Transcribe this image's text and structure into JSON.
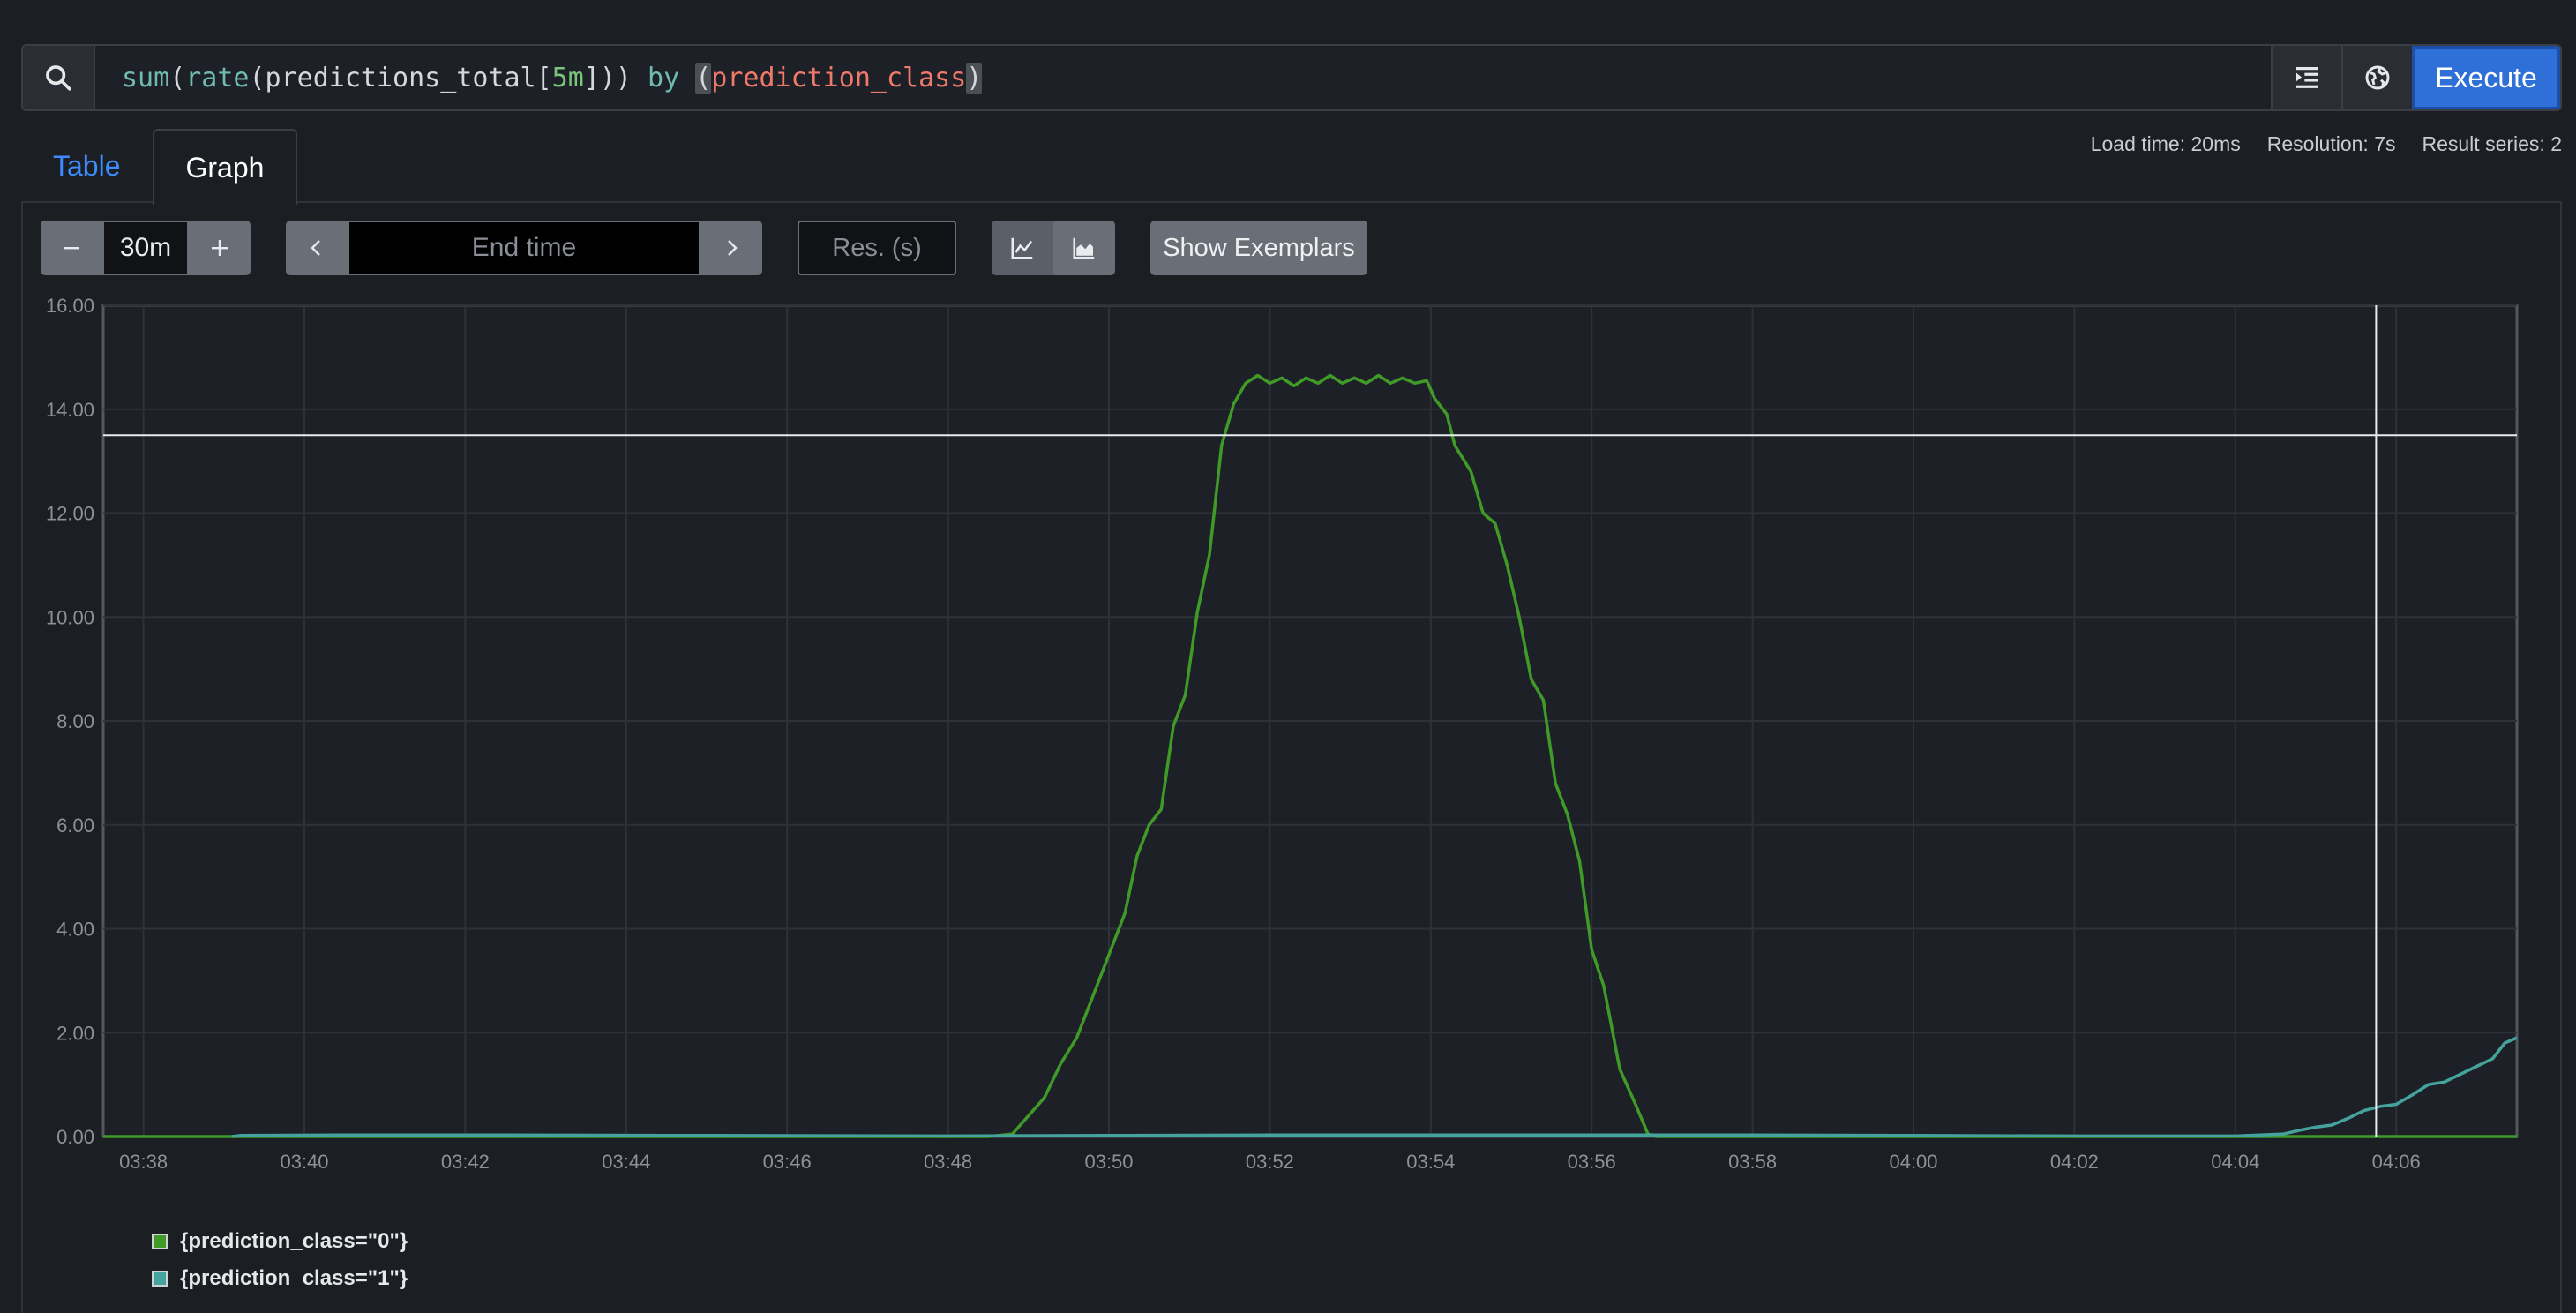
{
  "query": {
    "parts": [
      {
        "t": "sum",
        "c": "fn"
      },
      {
        "t": "(",
        "c": ""
      },
      {
        "t": "rate",
        "c": "fn"
      },
      {
        "t": "(predictions_total[",
        "c": ""
      },
      {
        "t": "5m",
        "c": "num"
      },
      {
        "t": "])) ",
        "c": ""
      },
      {
        "t": "by",
        "c": "kw"
      },
      {
        "t": " ",
        "c": ""
      },
      {
        "t": "(",
        "c": "br"
      },
      {
        "t": "prediction_class",
        "c": "lbl"
      },
      {
        "t": ")",
        "c": "br"
      }
    ]
  },
  "icons": {
    "search": "search-icon",
    "format": "format-indent-icon",
    "metrics": "metrics-explorer-icon"
  },
  "execute_label": "Execute",
  "stats": {
    "load_time": "Load time: 20ms",
    "resolution": "Resolution: 7s",
    "result_series": "Result series: 2"
  },
  "tabs": {
    "table": "Table",
    "graph": "Graph"
  },
  "controls": {
    "range_value": "30m",
    "end_time_placeholder": "End time",
    "resolution_placeholder": "Res. (s)",
    "show_exemplars": "Show Exemplars"
  },
  "colors": {
    "series0": "#3f9a28",
    "series1": "#44a39c",
    "accent": "#2f6fd8"
  },
  "chart_data": {
    "type": "line",
    "ylim": [
      0,
      16
    ],
    "y_ticks": [
      "0.00",
      "2.00",
      "4.00",
      "6.00",
      "8.00",
      "10.00",
      "12.00",
      "14.00",
      "16.00"
    ],
    "x_ticks": [
      "03:38",
      "03:40",
      "03:42",
      "03:44",
      "03:46",
      "03:48",
      "03:50",
      "03:52",
      "03:54",
      "03:56",
      "03:58",
      "04:00",
      "04:02",
      "04:04",
      "04:06"
    ],
    "x_range_minutes": [
      37.5,
      67.5
    ],
    "crosshair": {
      "x": 65.75,
      "y": 13.5
    },
    "series": [
      {
        "name": "{prediction_class=\"0\"}",
        "color": "#3f9a28",
        "points": [
          [
            37.5,
            0
          ],
          [
            48.5,
            0
          ],
          [
            48.8,
            0.05
          ],
          [
            49.0,
            0.4
          ],
          [
            49.2,
            0.75
          ],
          [
            49.4,
            1.4
          ],
          [
            49.6,
            1.9
          ],
          [
            49.8,
            2.7
          ],
          [
            50.0,
            3.5
          ],
          [
            50.2,
            4.3
          ],
          [
            50.35,
            5.4
          ],
          [
            50.5,
            6.0
          ],
          [
            50.65,
            6.3
          ],
          [
            50.8,
            7.9
          ],
          [
            50.95,
            8.5
          ],
          [
            51.1,
            10.1
          ],
          [
            51.25,
            11.2
          ],
          [
            51.4,
            13.3
          ],
          [
            51.55,
            14.1
          ],
          [
            51.7,
            14.5
          ],
          [
            51.85,
            14.65
          ],
          [
            52.0,
            14.5
          ],
          [
            52.15,
            14.6
          ],
          [
            52.3,
            14.45
          ],
          [
            52.45,
            14.6
          ],
          [
            52.6,
            14.5
          ],
          [
            52.75,
            14.65
          ],
          [
            52.9,
            14.5
          ],
          [
            53.05,
            14.6
          ],
          [
            53.2,
            14.5
          ],
          [
            53.35,
            14.65
          ],
          [
            53.5,
            14.5
          ],
          [
            53.65,
            14.6
          ],
          [
            53.8,
            14.5
          ],
          [
            53.95,
            14.55
          ],
          [
            54.05,
            14.2
          ],
          [
            54.2,
            13.9
          ],
          [
            54.3,
            13.3
          ],
          [
            54.5,
            12.8
          ],
          [
            54.65,
            12.0
          ],
          [
            54.8,
            11.8
          ],
          [
            54.95,
            11.0
          ],
          [
            55.1,
            10.0
          ],
          [
            55.25,
            8.8
          ],
          [
            55.4,
            8.4
          ],
          [
            55.55,
            6.8
          ],
          [
            55.7,
            6.2
          ],
          [
            55.85,
            5.3
          ],
          [
            56.0,
            3.6
          ],
          [
            56.15,
            2.9
          ],
          [
            56.35,
            1.3
          ],
          [
            56.55,
            0.6
          ],
          [
            56.7,
            0.05
          ],
          [
            56.8,
            0
          ],
          [
            67.5,
            0
          ]
        ]
      },
      {
        "name": "{prediction_class=\"1\"}",
        "color": "#44a39c",
        "points": [
          [
            39.1,
            0
          ],
          [
            39.2,
            0.02
          ],
          [
            40.5,
            0.03
          ],
          [
            42.5,
            0.03
          ],
          [
            45,
            0.02
          ],
          [
            48,
            0.01
          ],
          [
            50,
            0.02
          ],
          [
            52,
            0.03
          ],
          [
            55,
            0.03
          ],
          [
            56.5,
            0.03
          ],
          [
            58,
            0.03
          ],
          [
            60,
            0.02
          ],
          [
            62,
            0.01
          ],
          [
            64.0,
            0.01
          ],
          [
            64.6,
            0.05
          ],
          [
            64.8,
            0.12
          ],
          [
            65.0,
            0.18
          ],
          [
            65.2,
            0.22
          ],
          [
            65.4,
            0.35
          ],
          [
            65.6,
            0.5
          ],
          [
            65.8,
            0.58
          ],
          [
            66.0,
            0.62
          ],
          [
            66.2,
            0.8
          ],
          [
            66.4,
            1.0
          ],
          [
            66.6,
            1.05
          ],
          [
            66.8,
            1.2
          ],
          [
            67.0,
            1.35
          ],
          [
            67.2,
            1.5
          ],
          [
            67.35,
            1.8
          ],
          [
            67.5,
            1.9
          ]
        ]
      }
    ]
  }
}
